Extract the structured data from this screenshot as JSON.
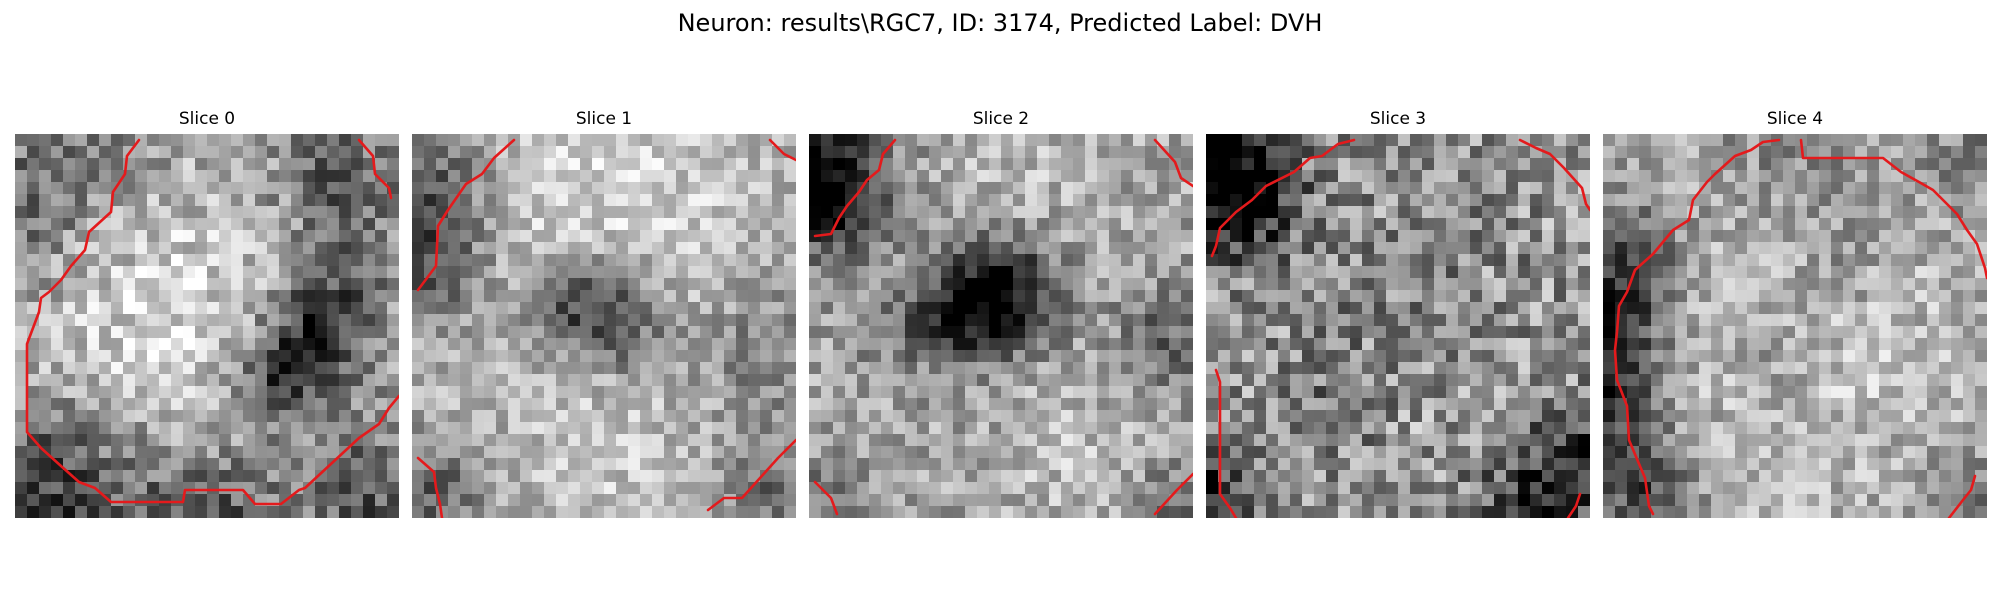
{
  "figure": {
    "title": "Neuron: results\\RGC7, ID: 3174, Predicted Label: DVH"
  },
  "slices": [
    {
      "title": "Slice 0"
    },
    {
      "title": "Slice 1"
    },
    {
      "title": "Slice 2"
    },
    {
      "title": "Slice 3"
    },
    {
      "title": "Slice 4"
    }
  ],
  "colors": {
    "contour": "#e41a1c",
    "background": "#ffffff"
  }
}
